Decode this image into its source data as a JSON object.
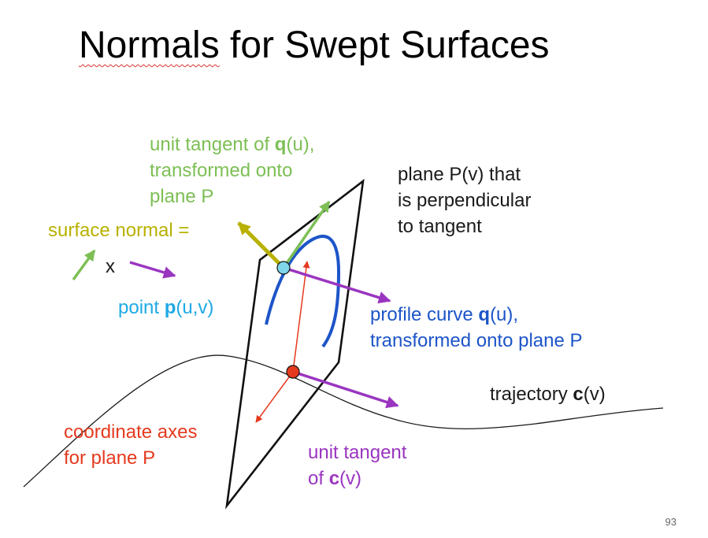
{
  "slide": {
    "title_part1": "Normals",
    "title_part2": " for Swept Surfaces",
    "page_number": "93"
  },
  "labels": {
    "unit_tangent_q": {
      "line1_pre": "unit tangent of ",
      "line1_bold": "q",
      "line1_post": "(u),",
      "line2": "transformed onto",
      "line3": "plane P"
    },
    "plane_pv": {
      "line1": "plane P(v) that",
      "line2": "is perpendicular",
      "line3": "to tangent"
    },
    "surface_normal": {
      "line1": "surface normal ="
    },
    "cross": {
      "symbol": "x"
    },
    "point_p": {
      "pre": "point ",
      "bold": "p",
      "post": "(u,v)"
    },
    "profile_curve": {
      "line1_pre": "profile curve ",
      "line1_bold": "q",
      "line1_post": "(u),",
      "line2": "transformed onto plane P"
    },
    "trajectory": {
      "pre": "trajectory ",
      "bold": "c",
      "post": "(v)"
    },
    "coordinate_axes": {
      "line1": "coordinate axes",
      "line2": "for plane P"
    },
    "unit_tangent_c": {
      "line1": "unit tangent",
      "line2_pre": "of ",
      "line2_bold": "c",
      "line2_post": "(v)"
    }
  },
  "colors": {
    "green": "#7dbf55",
    "olive": "#b8b100",
    "cyan": "#1ea9e6",
    "blue": "#1d55c8",
    "red": "#e53a1e",
    "purple": "#9a35c0",
    "black": "#1a1a1a"
  }
}
